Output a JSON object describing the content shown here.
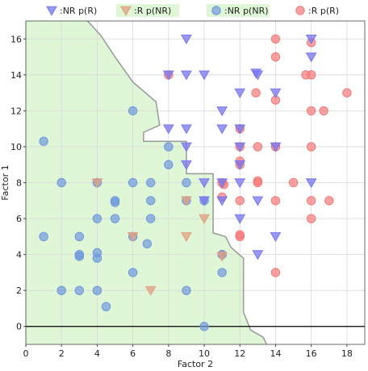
{
  "chart_data": {
    "type": "scatter",
    "title": "",
    "xlabel": "Factor 2",
    "ylabel": "Factor 1",
    "xlim": [
      0,
      19
    ],
    "ylim": [
      -1,
      17
    ],
    "x_ticks": [
      0,
      2,
      4,
      6,
      8,
      10,
      12,
      14,
      16,
      18
    ],
    "y_ticks": [
      0,
      2,
      4,
      6,
      8,
      10,
      12,
      14,
      16
    ],
    "grid": true,
    "zero_line": 0,
    "legend_position": "top",
    "region": {
      "name": "NR decision region",
      "color": "#dff7d6",
      "edge_color": "#999999",
      "boundary": [
        [
          3,
          17.5
        ],
        [
          4.2,
          16.2
        ],
        [
          5,
          15
        ],
        [
          6,
          13.6
        ],
        [
          7.3,
          12.5
        ],
        [
          7.5,
          11.2
        ],
        [
          6.6,
          10.8
        ],
        [
          6.6,
          10.3
        ],
        [
          9,
          10.3
        ],
        [
          9,
          8.5
        ],
        [
          10.5,
          8.5
        ],
        [
          10.5,
          6.2
        ],
        [
          10.5,
          5.2
        ],
        [
          11.2,
          5
        ],
        [
          11.5,
          4.4
        ],
        [
          12.2,
          3.8
        ],
        [
          12.2,
          2.4
        ],
        [
          12.2,
          0.8
        ],
        [
          12.6,
          -0.2
        ],
        [
          13.3,
          -0.6
        ],
        [
          13.5,
          -1
        ]
      ]
    },
    "series": [
      {
        "name": ":NR p(R)",
        "marker": "triangle",
        "color": "#7777ee",
        "points": [
          [
            9,
            16
          ],
          [
            16,
            16
          ],
          [
            9,
            14
          ],
          [
            8,
            14
          ],
          [
            10,
            14
          ],
          [
            12.9,
            14.1
          ],
          [
            13,
            14
          ],
          [
            16,
            15
          ],
          [
            12,
            13
          ],
          [
            14,
            13
          ],
          [
            11,
            12
          ],
          [
            8,
            11
          ],
          [
            9,
            11
          ],
          [
            11,
            11
          ],
          [
            12,
            11
          ],
          [
            9,
            10
          ],
          [
            12,
            10
          ],
          [
            14,
            10
          ],
          [
            9,
            9
          ],
          [
            12,
            9
          ],
          [
            10,
            8
          ],
          [
            11,
            8
          ],
          [
            12,
            8
          ],
          [
            11,
            7
          ],
          [
            13,
            7
          ],
          [
            10,
            7
          ],
          [
            12,
            6
          ],
          [
            14,
            5
          ],
          [
            13,
            4
          ],
          [
            16,
            8
          ]
        ]
      },
      {
        "name": ":R p(NR)",
        "marker": "triangle",
        "color": "#e0a080",
        "points": [
          [
            4,
            8
          ],
          [
            9,
            7
          ],
          [
            10,
            6
          ],
          [
            6,
            5
          ],
          [
            9,
            5
          ],
          [
            11,
            3.9
          ],
          [
            7,
            2
          ]
        ]
      },
      {
        "name": ":NR p(NR)",
        "marker": "circle",
        "color": "#6f98dd",
        "points": [
          [
            1,
            10.3
          ],
          [
            6,
            12
          ],
          [
            8,
            10
          ],
          [
            8,
            9
          ],
          [
            2,
            8
          ],
          [
            4,
            8
          ],
          [
            6,
            8
          ],
          [
            7,
            8
          ],
          [
            9,
            8
          ],
          [
            5,
            7
          ],
          [
            5,
            6.9
          ],
          [
            7,
            7
          ],
          [
            9,
            7
          ],
          [
            10,
            7
          ],
          [
            4,
            6
          ],
          [
            5,
            6
          ],
          [
            7,
            6
          ],
          [
            1,
            5
          ],
          [
            3,
            5
          ],
          [
            6,
            5
          ],
          [
            4,
            4.1
          ],
          [
            3,
            4
          ],
          [
            3,
            3.9
          ],
          [
            4,
            3.8
          ],
          [
            6.8,
            4.6
          ],
          [
            6,
            3
          ],
          [
            11,
            3
          ],
          [
            2,
            2
          ],
          [
            3,
            2
          ],
          [
            4,
            2
          ],
          [
            9,
            2
          ],
          [
            4.5,
            1.1
          ],
          [
            10,
            0
          ],
          [
            11,
            4
          ]
        ]
      },
      {
        "name": ":R p(R)",
        "marker": "circle",
        "color": "#f27a7a",
        "points": [
          [
            8,
            14
          ],
          [
            14,
            16
          ],
          [
            16,
            15.8
          ],
          [
            14,
            15
          ],
          [
            15.7,
            14
          ],
          [
            16,
            14
          ],
          [
            12.9,
            13
          ],
          [
            14,
            12.6
          ],
          [
            16,
            12
          ],
          [
            16.7,
            12
          ],
          [
            18,
            13
          ],
          [
            12,
            11
          ],
          [
            12,
            10
          ],
          [
            13,
            10
          ],
          [
            14,
            10
          ],
          [
            16,
            10
          ],
          [
            12,
            9.2
          ],
          [
            12,
            9
          ],
          [
            11,
            8
          ],
          [
            13,
            8
          ],
          [
            13,
            8.1
          ],
          [
            15,
            8
          ],
          [
            11,
            7.2
          ],
          [
            12,
            7
          ],
          [
            14,
            7
          ],
          [
            16,
            7
          ],
          [
            17,
            7
          ],
          [
            16,
            6
          ],
          [
            12,
            5
          ],
          [
            12,
            5.1
          ],
          [
            11,
            4
          ],
          [
            14,
            3
          ],
          [
            11.1,
            7.9
          ]
        ]
      }
    ]
  }
}
